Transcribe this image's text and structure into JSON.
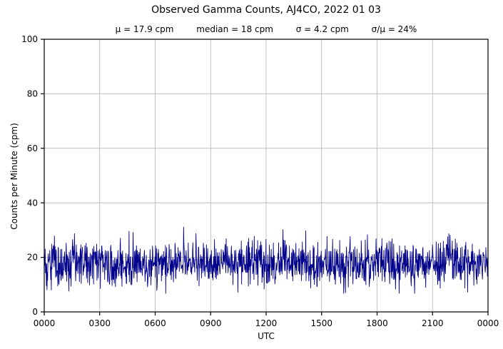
{
  "chart_data": {
    "type": "line",
    "title": "Observed Gamma Counts, AJ4CO, 2022 01 03",
    "subtitle_stats": [
      "μ = 17.9 cpm",
      "median = 18 cpm",
      "σ = 4.2 cpm",
      "σ/μ = 24%"
    ],
    "stats": {
      "mean_cpm": 17.9,
      "median_cpm": 18,
      "sigma_cpm": 4.2,
      "sigma_over_mean_pct": 24
    },
    "xlabel": "UTC",
    "ylabel": "Counts per Minute (cpm)",
    "xticks": [
      "0000",
      "0300",
      "0600",
      "0900",
      "1200",
      "1500",
      "1800",
      "2100",
      "0000"
    ],
    "yticks": [
      0,
      20,
      40,
      60,
      80,
      100
    ],
    "ylim": [
      0,
      100
    ],
    "x_range_minutes": 1440,
    "value_min": 7,
    "value_max": 31,
    "grid": true,
    "series": [
      {
        "name": "observed-gamma-counts",
        "color": "#00008b",
        "n_points": 1440,
        "mean": 17.9,
        "sigma": 4.2,
        "clamp": [
          6.8,
          31.2
        ],
        "seed": 20220103
      }
    ],
    "colors": {
      "grid": "#b3b3b3",
      "axis": "#000000",
      "background": "#ffffff"
    }
  }
}
